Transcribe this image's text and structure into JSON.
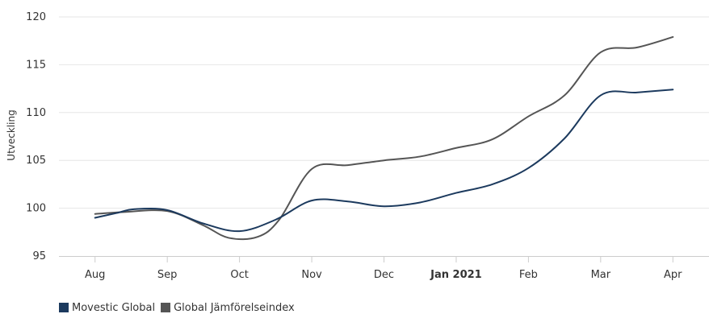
{
  "chart_data": {
    "type": "line",
    "ylabel": "Utveckling",
    "xlabel": "",
    "title": "",
    "categories": [
      "Aug",
      "Sep",
      "Oct",
      "Nov",
      "Dec",
      "Jan 2021",
      "Feb",
      "Mar",
      "Apr"
    ],
    "bold_category": "Jan 2021",
    "ylim": [
      95,
      120
    ],
    "yticks": [
      "95",
      "100",
      "105",
      "110",
      "115",
      "120"
    ],
    "grid": true,
    "legend_position": "bottom-left",
    "series": [
      {
        "name": "Movestic Global",
        "color": "#1c3a5e",
        "points": [
          [
            0,
            99.0
          ],
          [
            0.3,
            99.5
          ],
          [
            0.55,
            99.9
          ],
          [
            1.0,
            99.8
          ],
          [
            1.5,
            98.4
          ],
          [
            2.0,
            97.6
          ],
          [
            2.5,
            98.8
          ],
          [
            3.0,
            100.8
          ],
          [
            3.5,
            100.7
          ],
          [
            4.0,
            100.2
          ],
          [
            4.5,
            100.6
          ],
          [
            5.0,
            101.6
          ],
          [
            5.5,
            102.5
          ],
          [
            6.0,
            104.2
          ],
          [
            6.5,
            107.3
          ],
          [
            7.0,
            111.8
          ],
          [
            7.5,
            112.1
          ],
          [
            8.0,
            112.4
          ]
        ]
      },
      {
        "name": "Global Jämförelseindex",
        "color": "#555555",
        "points": [
          [
            0,
            99.4
          ],
          [
            0.4,
            99.6
          ],
          [
            1.0,
            99.7
          ],
          [
            1.5,
            98.2
          ],
          [
            1.85,
            96.9
          ],
          [
            2.25,
            97.0
          ],
          [
            2.55,
            98.8
          ],
          [
            3.0,
            104.1
          ],
          [
            3.5,
            104.5
          ],
          [
            4.0,
            105.0
          ],
          [
            4.5,
            105.4
          ],
          [
            5.0,
            106.3
          ],
          [
            5.5,
            107.2
          ],
          [
            6.0,
            109.6
          ],
          [
            6.5,
            111.8
          ],
          [
            7.0,
            116.3
          ],
          [
            7.5,
            116.8
          ],
          [
            8.0,
            117.9
          ]
        ]
      }
    ]
  }
}
